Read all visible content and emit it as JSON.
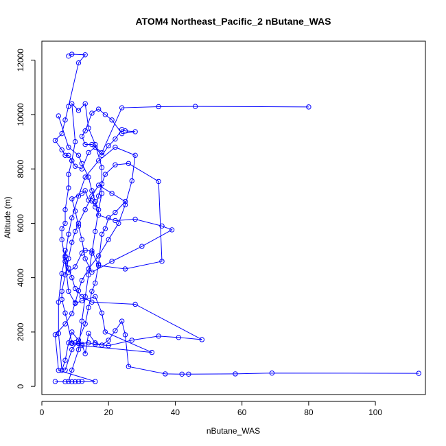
{
  "chart_data": {
    "type": "line",
    "title": "ATOM4 Northeast_Pacific_2 nButane_WAS",
    "xlabel": "nButane_WAS",
    "ylabel": "Altitude (m)",
    "xlim": [
      0,
      115
    ],
    "ylim": [
      -300,
      12700
    ],
    "x_ticks": [
      0,
      20,
      40,
      60,
      80,
      100
    ],
    "y_ticks": [
      0,
      2000,
      4000,
      6000,
      8000,
      10000,
      12000
    ],
    "grid": false,
    "legend": "none",
    "colors": {
      "series": "#0000ff",
      "axis": "#000000",
      "background": "#ffffff"
    },
    "series": [
      {
        "values": [
          [
            4,
            180
          ],
          [
            7,
            170
          ],
          [
            9,
            170
          ],
          [
            10,
            170
          ],
          [
            11,
            180
          ],
          [
            12,
            185
          ],
          [
            16,
            180
          ],
          [
            5,
            590
          ],
          [
            4,
            1900
          ],
          [
            7,
            2300
          ],
          [
            9,
            2680
          ],
          [
            10,
            3080
          ],
          [
            11,
            3520
          ],
          [
            12,
            3900
          ],
          [
            14,
            4320
          ],
          [
            17,
            4800
          ],
          [
            20,
            5400
          ],
          [
            23,
            6000
          ],
          [
            25,
            6680
          ],
          [
            27,
            7560
          ],
          [
            28,
            8500
          ],
          [
            22,
            8800
          ],
          [
            17,
            8300
          ],
          [
            13,
            7700
          ],
          [
            11,
            7000
          ],
          [
            9,
            6200
          ],
          [
            8,
            5600
          ],
          [
            7,
            4800
          ],
          [
            6,
            4150
          ],
          [
            5,
            3100
          ],
          [
            5,
            1950
          ],
          [
            6,
            590
          ],
          [
            7,
            960
          ],
          [
            8,
            1600
          ],
          [
            9,
            2000
          ],
          [
            12,
            1550
          ],
          [
            13,
            1200
          ],
          [
            14,
            1950
          ],
          [
            16,
            1600
          ],
          [
            18,
            1520
          ],
          [
            20,
            1700
          ],
          [
            22,
            2050
          ],
          [
            24,
            2400
          ],
          [
            25,
            1900
          ],
          [
            26,
            730
          ],
          [
            37,
            460
          ],
          [
            42,
            450
          ],
          [
            44,
            450
          ],
          [
            58,
            460
          ],
          [
            69,
            490
          ],
          [
            113,
            480
          ]
        ]
      },
      {
        "values": [
          [
            8,
            180
          ],
          [
            9,
            600
          ],
          [
            11,
            1350
          ],
          [
            12,
            2400
          ],
          [
            13,
            3300
          ],
          [
            14,
            4100
          ],
          [
            15,
            4900
          ],
          [
            16,
            5700
          ],
          [
            17,
            6500
          ],
          [
            18,
            7100
          ],
          [
            18,
            8050
          ],
          [
            16,
            8900
          ],
          [
            14,
            9500
          ],
          [
            13,
            10400
          ],
          [
            11,
            10150
          ],
          [
            9,
            10400
          ],
          [
            10,
            9000
          ],
          [
            9,
            8300
          ],
          [
            8,
            7800
          ],
          [
            8,
            7300
          ],
          [
            7,
            6500
          ],
          [
            7,
            6000
          ],
          [
            6,
            5800
          ],
          [
            6,
            5400
          ],
          [
            7,
            4600
          ],
          [
            8,
            3500
          ],
          [
            10,
            3050
          ],
          [
            12,
            3150
          ],
          [
            16,
            3300
          ],
          [
            18,
            2700
          ],
          [
            19,
            2000
          ],
          [
            33,
            1250
          ],
          [
            12,
            1500
          ],
          [
            10,
            1600
          ],
          [
            9,
            1580
          ]
        ]
      },
      {
        "values": [
          [
            5,
            9950
          ],
          [
            8,
            8800
          ],
          [
            11,
            8500
          ],
          [
            12,
            8200
          ],
          [
            14,
            7700
          ],
          [
            15,
            7200
          ],
          [
            16,
            6800
          ],
          [
            17,
            6300
          ],
          [
            22,
            6100
          ],
          [
            28,
            6150
          ],
          [
            36,
            5900
          ],
          [
            39,
            5760
          ],
          [
            30,
            5150
          ],
          [
            21,
            4600
          ],
          [
            15,
            4200
          ],
          [
            13,
            4700
          ],
          [
            12,
            5400
          ],
          [
            11,
            5900
          ],
          [
            10,
            6450
          ],
          [
            9,
            6900
          ],
          [
            12,
            7100
          ],
          [
            13,
            7200
          ],
          [
            14,
            6850
          ],
          [
            15,
            6820
          ],
          [
            16,
            6600
          ],
          [
            17,
            7000
          ],
          [
            18,
            7450
          ],
          [
            19,
            7800
          ],
          [
            22,
            8150
          ],
          [
            26,
            8200
          ],
          [
            35,
            7540
          ],
          [
            36,
            4600
          ],
          [
            25,
            4320
          ],
          [
            17,
            4450
          ],
          [
            15,
            4980
          ],
          [
            13,
            5000
          ],
          [
            12,
            4900
          ],
          [
            10,
            4400
          ],
          [
            8,
            4200
          ],
          [
            7,
            4600
          ]
        ]
      },
      {
        "values": [
          [
            8,
            12150
          ],
          [
            9,
            12220
          ],
          [
            13,
            12200
          ],
          [
            11,
            11900
          ],
          [
            8,
            10300
          ],
          [
            7,
            9800
          ],
          [
            6,
            9300
          ],
          [
            4,
            9050
          ],
          [
            6,
            8700
          ],
          [
            7,
            8500
          ],
          [
            8,
            8500
          ],
          [
            9,
            8300
          ],
          [
            10,
            8100
          ],
          [
            12,
            8000
          ],
          [
            14,
            8600
          ],
          [
            16,
            8800
          ],
          [
            18,
            8500
          ],
          [
            20,
            8850
          ],
          [
            22,
            9100
          ],
          [
            24,
            9450
          ],
          [
            25,
            9400
          ],
          [
            28,
            9370
          ],
          [
            24,
            9300
          ],
          [
            21,
            9800
          ],
          [
            19,
            10000
          ],
          [
            17,
            10200
          ],
          [
            15,
            10050
          ],
          [
            13,
            9400
          ],
          [
            12,
            9200
          ],
          [
            13,
            8900
          ],
          [
            15,
            8900
          ],
          [
            18,
            8600
          ],
          [
            24,
            10250
          ],
          [
            35,
            10290
          ],
          [
            46,
            10300
          ],
          [
            80,
            10280
          ]
        ]
      },
      {
        "values": [
          [
            7,
            600
          ],
          [
            9,
            1350
          ],
          [
            11,
            1700
          ],
          [
            13,
            2300
          ],
          [
            14,
            2900
          ],
          [
            15,
            3500
          ],
          [
            16,
            3800
          ],
          [
            17,
            4500
          ],
          [
            18,
            5600
          ],
          [
            19,
            5800
          ],
          [
            20,
            6200
          ],
          [
            22,
            6400
          ],
          [
            25,
            6800
          ],
          [
            21,
            7100
          ],
          [
            17,
            7400
          ],
          [
            15,
            7000
          ],
          [
            13,
            6500
          ],
          [
            11,
            6000
          ],
          [
            10,
            5700
          ],
          [
            9,
            5300
          ],
          [
            8,
            4700
          ],
          [
            7,
            4100
          ],
          [
            6,
            3500
          ],
          [
            6,
            3200
          ],
          [
            7,
            2700
          ],
          [
            9,
            1600
          ],
          [
            11,
            1580
          ],
          [
            14,
            1600
          ],
          [
            16,
            1550
          ],
          [
            20,
            1500
          ],
          [
            27,
            1700
          ],
          [
            35,
            1850
          ],
          [
            41,
            1800
          ],
          [
            48,
            1720
          ],
          [
            28,
            3020
          ],
          [
            15,
            3100
          ],
          [
            12,
            3300
          ],
          [
            10,
            3600
          ],
          [
            9,
            4000
          ],
          [
            8,
            4350
          ],
          [
            7,
            4750
          ],
          [
            7,
            5000
          ]
        ]
      }
    ]
  }
}
